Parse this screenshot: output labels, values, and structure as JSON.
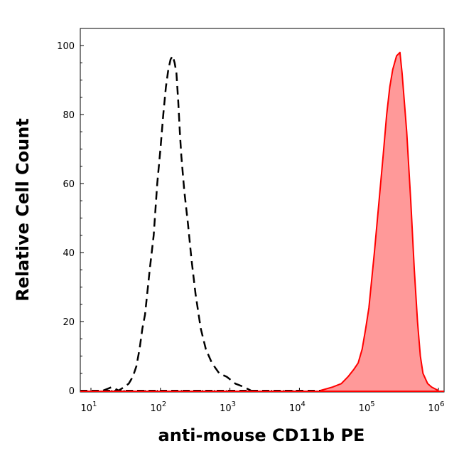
{
  "chart_data": {
    "type": "area",
    "title": "",
    "xlabel": "anti-mouse CD11b PE",
    "ylabel": "Relative Cell Count",
    "x_scale": "log",
    "xlim": [
      10,
      1000000
    ],
    "ylim": [
      0,
      100
    ],
    "grid": false,
    "x_ticks": [
      {
        "value": 10,
        "base": "10",
        "exp": "1"
      },
      {
        "value": 100,
        "base": "10",
        "exp": "2"
      },
      {
        "value": 1000,
        "base": "10",
        "exp": "3"
      },
      {
        "value": 10000,
        "base": "10",
        "exp": "4"
      },
      {
        "value": 100000,
        "base": "10",
        "exp": "5"
      },
      {
        "value": 1000000,
        "base": "10",
        "exp": "6"
      }
    ],
    "y_ticks": [
      {
        "value": 0,
        "label": "0"
      },
      {
        "value": 20,
        "label": "20"
      },
      {
        "value": 40,
        "label": "40"
      },
      {
        "value": 60,
        "label": "60"
      },
      {
        "value": 80,
        "label": "80"
      },
      {
        "value": 100,
        "label": "100"
      }
    ],
    "series": [
      {
        "style": "dashed",
        "color": "#000000",
        "fill": "none",
        "x": [
          15,
          20,
          25,
          30,
          35,
          40,
          45,
          50,
          55,
          60,
          70,
          80,
          90,
          100,
          110,
          120,
          130,
          140,
          150,
          160,
          170,
          180,
          190,
          200,
          220,
          250,
          280,
          320,
          380,
          450,
          550,
          700,
          900,
          1200,
          1600,
          2000
        ],
        "y": [
          0,
          1,
          0,
          1,
          2,
          4,
          7,
          12,
          18,
          22,
          35,
          45,
          60,
          70,
          80,
          88,
          93,
          96,
          97,
          95,
          92,
          84,
          75,
          68,
          58,
          48,
          38,
          28,
          18,
          12,
          8,
          5,
          4,
          2,
          1,
          0
        ]
      },
      {
        "style": "solid",
        "color": "#ff0000",
        "fill": "#ff9999",
        "x": [
          20000,
          30000,
          40000,
          50000,
          60000,
          70000,
          80000,
          90000,
          100000,
          120000,
          140000,
          160000,
          180000,
          200000,
          220000,
          250000,
          280000,
          300000,
          350000,
          400000,
          450000,
          500000,
          550000,
          600000,
          700000,
          800000,
          1000000
        ],
        "y": [
          0,
          1,
          2,
          4,
          6,
          8,
          12,
          18,
          24,
          40,
          55,
          68,
          80,
          88,
          93,
          97,
          98,
          92,
          75,
          55,
          35,
          20,
          10,
          5,
          2,
          1,
          0
        ]
      }
    ]
  }
}
